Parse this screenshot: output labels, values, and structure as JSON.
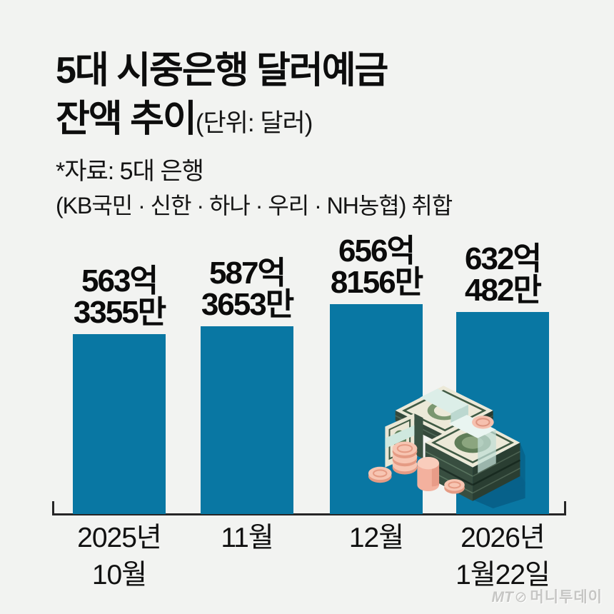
{
  "header": {
    "title_line1": "5대 시중은행 달러예금",
    "title_line2": "잔액 추이",
    "unit_note": "(단위: 달러)",
    "source_line1": "*자료: 5대 은행",
    "source_line2": "(KB국민 · 신한 · 하나 · 우리 · NH농협) 취합"
  },
  "footer": {
    "logo_prefix": "MT",
    "logo_circle": "⊘",
    "logo_name": "머니투데이"
  },
  "colors": {
    "background": "#f2f3f1",
    "bar": "#0977a3",
    "axis": "#262626",
    "text": "#0d0d0d",
    "logo_gray": "#c6c6c4"
  },
  "chart_data": {
    "type": "bar",
    "title": "5대 시중은행 달러예금 잔액 추이",
    "unit": "달러",
    "source": "5대 은행(KB국민·신한·하나·우리·NH농협) 취합",
    "categories": [
      "2025년 10월",
      "11월",
      "12월",
      "2026년 1월22일"
    ],
    "values_eok_dollars": [
      563.3355,
      587.3653,
      656.8156,
      632.0482
    ],
    "value_labels": [
      "563억 3355만",
      "587억 3653만",
      "656억 8156만",
      "632억 482만"
    ],
    "ylim_eok": [
      0,
      800
    ],
    "grid": false,
    "legend": false,
    "bars": [
      {
        "value_line1": "563억",
        "value_line2": "3355만",
        "cat_line1": "2025년",
        "cat_line2": "10월",
        "value_eok": 563.3355
      },
      {
        "value_line1": "587억",
        "value_line2": "3653만",
        "cat_line1": "11월",
        "cat_line2": "",
        "value_eok": 587.3653
      },
      {
        "value_line1": "656억",
        "value_line2": "8156만",
        "cat_line1": "12월",
        "cat_line2": "",
        "value_eok": 656.8156
      },
      {
        "value_line1": "632억",
        "value_line2": "482만",
        "cat_line1": "2026년",
        "cat_line2": "1월22일",
        "value_eok": 632.0482
      }
    ]
  }
}
